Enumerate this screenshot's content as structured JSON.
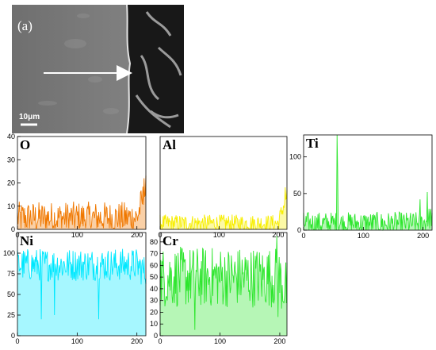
{
  "micrograph": {
    "panel_label": "(a)",
    "scale_bar_label": "10μm"
  },
  "chart_data": [
    {
      "type": "line",
      "label": "O",
      "color": "#f07800",
      "xlim": [
        0,
        215
      ],
      "ylim": [
        0,
        40
      ],
      "xticks": [
        0,
        100,
        200
      ],
      "yticks": [
        0,
        10,
        20,
        30,
        40
      ],
      "profile": {
        "base": 5,
        "spread": 7,
        "end_rise": 12,
        "drops": []
      },
      "spikes": [
        {
          "x": 212,
          "y": 22
        }
      ]
    },
    {
      "type": "line",
      "label": "Al",
      "color": "#f7ee00",
      "xlim": [
        0,
        215
      ],
      "ylim": [
        0,
        150
      ],
      "xticks": [
        0,
        100,
        200
      ],
      "yticks": [],
      "profile": {
        "base": 10,
        "spread": 14,
        "end_rise": 45,
        "drops": []
      },
      "spikes": [
        {
          "x": 212,
          "y": 68
        }
      ]
    },
    {
      "type": "line",
      "label": "Ti",
      "color": "#2ee62e",
      "xlim": [
        0,
        215
      ],
      "ylim": [
        0,
        130
      ],
      "xticks": [
        0,
        100,
        200
      ],
      "yticks": [
        0,
        50,
        100
      ],
      "profile": {
        "base": 9,
        "spread": 16,
        "end_rise": 10,
        "drops": []
      },
      "spikes": [
        {
          "x": 56,
          "y": 130
        },
        {
          "x": 57,
          "y": 85
        },
        {
          "x": 195,
          "y": 42
        },
        {
          "x": 207,
          "y": 52
        }
      ]
    },
    {
      "type": "line",
      "label": "Ni",
      "color": "#00e8ff",
      "xlim": [
        0,
        215
      ],
      "ylim": [
        0,
        125
      ],
      "xticks": [
        0,
        100,
        200
      ],
      "yticks": [
        0,
        25,
        50,
        75,
        100
      ],
      "profile": {
        "base": 86,
        "spread": 20,
        "end_rise": -10,
        "drops": [
          {
            "x": 40,
            "y": 20
          },
          {
            "x": 62,
            "y": 25
          },
          {
            "x": 136,
            "y": 20
          }
        ]
      },
      "spikes": []
    },
    {
      "type": "line",
      "label": "Cr",
      "color": "#2ee62e",
      "xlim": [
        0,
        212
      ],
      "ylim": [
        0,
        88
      ],
      "xticks": [
        0,
        100,
        200
      ],
      "yticks": [
        0,
        10,
        20,
        30,
        40,
        50,
        60,
        70,
        80
      ],
      "profile": {
        "base": 50,
        "spread": 26,
        "end_rise": -12,
        "drops": [
          {
            "x": 58,
            "y": 5
          },
          {
            "x": 195,
            "y": 18
          },
          {
            "x": 197,
            "y": 16
          }
        ]
      },
      "spikes": [
        {
          "x": 195,
          "y": 85
        }
      ]
    }
  ]
}
